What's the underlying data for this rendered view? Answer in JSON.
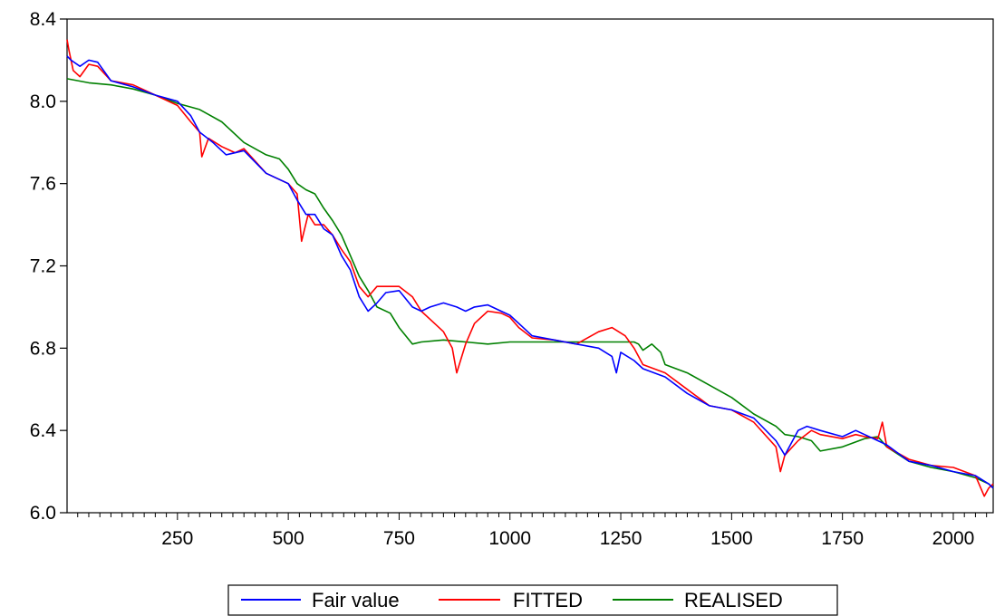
{
  "chart_data": {
    "type": "line",
    "title": "",
    "xlabel": "",
    "ylabel": "",
    "xlim": [
      1,
      2090
    ],
    "ylim": [
      6.0,
      8.4
    ],
    "x_ticks": [
      250,
      500,
      750,
      1000,
      1250,
      1500,
      1750,
      2000
    ],
    "x_tick_labels": [
      "250",
      "500",
      "750",
      "1000",
      "1250",
      "1500",
      "1750",
      "2000"
    ],
    "y_ticks": [
      6.0,
      6.4,
      6.8,
      7.2,
      7.6,
      8.0,
      8.4
    ],
    "y_tick_labels": [
      "6.0",
      "6.4",
      "6.8",
      "7.2",
      "7.6",
      "8.0",
      "8.4"
    ],
    "grid": false,
    "legend_position": "bottom-center",
    "series": [
      {
        "name": "Fair value",
        "color": "#0000ff",
        "x": [
          1,
          10,
          30,
          50,
          70,
          100,
          150,
          200,
          250,
          280,
          300,
          330,
          360,
          400,
          450,
          500,
          520,
          540,
          560,
          580,
          600,
          620,
          640,
          660,
          680,
          700,
          720,
          750,
          780,
          800,
          820,
          850,
          880,
          900,
          920,
          950,
          980,
          1000,
          1030,
          1050,
          1100,
          1150,
          1200,
          1230,
          1240,
          1250,
          1280,
          1300,
          1350,
          1400,
          1450,
          1500,
          1550,
          1600,
          1620,
          1650,
          1670,
          1700,
          1750,
          1780,
          1800,
          1830,
          1850,
          1900,
          1950,
          2000,
          2050,
          2080,
          2090
        ],
        "y": [
          8.22,
          8.2,
          8.17,
          8.2,
          8.19,
          8.1,
          8.07,
          8.03,
          8.0,
          7.93,
          7.85,
          7.8,
          7.74,
          7.76,
          7.65,
          7.6,
          7.52,
          7.45,
          7.45,
          7.38,
          7.35,
          7.25,
          7.18,
          7.05,
          6.98,
          7.02,
          7.07,
          7.08,
          7.0,
          6.98,
          7.0,
          7.02,
          7.0,
          6.98,
          7.0,
          7.01,
          6.98,
          6.96,
          6.9,
          6.86,
          6.84,
          6.82,
          6.8,
          6.76,
          6.68,
          6.78,
          6.74,
          6.7,
          6.66,
          6.58,
          6.52,
          6.5,
          6.46,
          6.35,
          6.28,
          6.4,
          6.42,
          6.4,
          6.37,
          6.4,
          6.38,
          6.35,
          6.33,
          6.25,
          6.23,
          6.2,
          6.18,
          6.14,
          6.12
        ]
      },
      {
        "name": "FITTED",
        "color": "#ff0000",
        "x": [
          1,
          5,
          15,
          30,
          50,
          70,
          100,
          150,
          200,
          250,
          280,
          300,
          305,
          320,
          350,
          380,
          400,
          450,
          500,
          520,
          530,
          545,
          560,
          580,
          600,
          620,
          640,
          660,
          680,
          700,
          720,
          750,
          780,
          800,
          830,
          850,
          870,
          880,
          900,
          920,
          950,
          980,
          1000,
          1020,
          1050,
          1100,
          1150,
          1200,
          1230,
          1260,
          1280,
          1300,
          1350,
          1400,
          1450,
          1500,
          1550,
          1600,
          1610,
          1620,
          1650,
          1680,
          1700,
          1750,
          1780,
          1800,
          1830,
          1840,
          1850,
          1900,
          1950,
          2000,
          2050,
          2070,
          2080,
          2090
        ],
        "y": [
          8.3,
          8.25,
          8.15,
          8.12,
          8.18,
          8.17,
          8.1,
          8.08,
          8.03,
          7.98,
          7.9,
          7.85,
          7.73,
          7.82,
          7.78,
          7.75,
          7.77,
          7.65,
          7.6,
          7.55,
          7.32,
          7.45,
          7.4,
          7.4,
          7.35,
          7.28,
          7.22,
          7.1,
          7.05,
          7.1,
          7.1,
          7.1,
          7.05,
          6.98,
          6.92,
          6.88,
          6.8,
          6.68,
          6.82,
          6.92,
          6.98,
          6.97,
          6.95,
          6.9,
          6.85,
          6.84,
          6.82,
          6.88,
          6.9,
          6.86,
          6.8,
          6.72,
          6.68,
          6.6,
          6.52,
          6.5,
          6.44,
          6.32,
          6.2,
          6.28,
          6.35,
          6.4,
          6.38,
          6.36,
          6.38,
          6.37,
          6.36,
          6.44,
          6.32,
          6.26,
          6.23,
          6.22,
          6.18,
          6.08,
          6.12,
          6.14
        ]
      },
      {
        "name": "REALISED",
        "color": "#008000",
        "x": [
          1,
          50,
          100,
          150,
          200,
          250,
          300,
          350,
          400,
          450,
          480,
          500,
          520,
          540,
          560,
          580,
          600,
          620,
          640,
          660,
          680,
          700,
          730,
          750,
          780,
          800,
          850,
          900,
          950,
          1000,
          1050,
          1100,
          1150,
          1200,
          1250,
          1280,
          1290,
          1300,
          1320,
          1340,
          1350,
          1400,
          1450,
          1500,
          1550,
          1600,
          1620,
          1650,
          1680,
          1700,
          1750,
          1800,
          1830,
          1850,
          1900,
          1950,
          2000,
          2050,
          2080,
          2090
        ],
        "y": [
          8.11,
          8.09,
          8.08,
          8.06,
          8.03,
          7.99,
          7.96,
          7.9,
          7.8,
          7.74,
          7.72,
          7.67,
          7.6,
          7.57,
          7.55,
          7.48,
          7.42,
          7.35,
          7.25,
          7.15,
          7.08,
          7.0,
          6.97,
          6.9,
          6.82,
          6.83,
          6.84,
          6.83,
          6.82,
          6.83,
          6.83,
          6.83,
          6.83,
          6.83,
          6.83,
          6.83,
          6.82,
          6.79,
          6.82,
          6.78,
          6.72,
          6.68,
          6.62,
          6.56,
          6.48,
          6.42,
          6.38,
          6.37,
          6.35,
          6.3,
          6.32,
          6.36,
          6.37,
          6.32,
          6.25,
          6.22,
          6.2,
          6.17,
          6.14,
          6.12
        ]
      }
    ]
  }
}
